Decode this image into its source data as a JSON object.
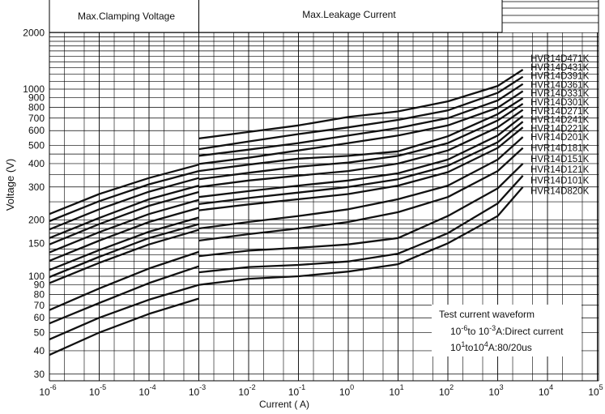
{
  "chart_data": {
    "type": "line",
    "title": "",
    "xlabel": "Current ( A)",
    "ylabel": "Voltage  (V)",
    "x_scale": "log",
    "y_scale": "log",
    "xlim": [
      1e-06,
      100000
    ],
    "ylim": [
      28,
      2400
    ],
    "header_left": "Max.Clamping Voltage",
    "header_right": "Max.Leakage Current",
    "x_ticks": [
      {
        "mant": "10",
        "exp": "-6",
        "value": 1e-06
      },
      {
        "mant": "10",
        "exp": "-5",
        "value": 1e-05
      },
      {
        "mant": "10",
        "exp": "-4",
        "value": 0.0001
      },
      {
        "mant": "10",
        "exp": "-3",
        "value": 0.001
      },
      {
        "mant": "10",
        "exp": "-2",
        "value": 0.01
      },
      {
        "mant": "10",
        "exp": "-1",
        "value": 0.1
      },
      {
        "mant": "10",
        "exp": "0",
        "value": 1
      },
      {
        "mant": "10",
        "exp": "1",
        "value": 10
      },
      {
        "mant": "10",
        "exp": "2",
        "value": 100
      },
      {
        "mant": "10",
        "exp": "3",
        "value": 1000
      },
      {
        "mant": "10",
        "exp": "4",
        "value": 10000
      },
      {
        "mant": "10",
        "exp": "5",
        "value": 100000
      }
    ],
    "y_ticks": [
      {
        "label": "30",
        "value": 30
      },
      {
        "label": "40",
        "value": 40
      },
      {
        "label": "50",
        "value": 50
      },
      {
        "label": "60",
        "value": 60
      },
      {
        "label": "70",
        "value": 70
      },
      {
        "label": "80",
        "value": 80
      },
      {
        "label": "90",
        "value": 90
      },
      {
        "label": "100",
        "value": 100
      },
      {
        "label": "150",
        "value": 150
      },
      {
        "label": "200",
        "value": 200
      },
      {
        "label": "300",
        "value": 300
      },
      {
        "label": "400",
        "value": 400
      },
      {
        "label": "500",
        "value": 500
      },
      {
        "label": "600",
        "value": 600
      },
      {
        "label": "700",
        "value": 700
      },
      {
        "label": "800",
        "value": 800
      },
      {
        "label": "900",
        "value": 900
      },
      {
        "label": "1000",
        "value": 1000
      },
      {
        "label": "2000",
        "value": 2000
      }
    ],
    "legend_box": {
      "line1": "Test current waveform",
      "line2_a": "10",
      "line2_a_exp": "-6",
      "line2_b": "to 10",
      "line2_b_exp": "-3",
      "line2_c": "A:Direct current",
      "line3_a": "10",
      "line3_a_exp": "1",
      "line3_b": "to10",
      "line3_b_exp": "4",
      "line3_c": "A:80/20us"
    },
    "series": [
      {
        "name": "HVR14D471K",
        "leak": [
          [
            0.001,
            545
          ],
          [
            0.01,
            590
          ],
          [
            0.1,
            640
          ],
          [
            1,
            710
          ],
          [
            10,
            760
          ],
          [
            100,
            860
          ],
          [
            1000,
            1040
          ],
          [
            3200,
            1270
          ]
        ],
        "clamp": [
          [
            1e-06,
            215
          ],
          [
            1e-05,
            275
          ],
          [
            0.0001,
            335
          ],
          [
            0.001,
            395
          ]
        ]
      },
      {
        "name": "HVR14D431K",
        "leak": [
          [
            0.001,
            478
          ],
          [
            0.01,
            525
          ],
          [
            0.1,
            575
          ],
          [
            1,
            625
          ],
          [
            10,
            685
          ],
          [
            100,
            770
          ],
          [
            1000,
            955
          ],
          [
            3200,
            1165
          ]
        ],
        "clamp": [
          [
            1e-06,
            197
          ],
          [
            1e-05,
            252
          ],
          [
            0.0001,
            310
          ],
          [
            0.001,
            365
          ]
        ]
      },
      {
        "name": "HVR14D391K",
        "leak": [
          [
            0.001,
            440
          ],
          [
            0.01,
            475
          ],
          [
            0.1,
            515
          ],
          [
            1,
            565
          ],
          [
            10,
            620
          ],
          [
            100,
            700
          ],
          [
            1000,
            870
          ],
          [
            3200,
            1065
          ]
        ],
        "clamp": [
          [
            1e-06,
            178
          ],
          [
            1e-05,
            228
          ],
          [
            0.0001,
            283
          ],
          [
            0.001,
            335
          ]
        ]
      },
      {
        "name": "HVR14D361K",
        "leak": [
          [
            0.001,
            398
          ],
          [
            0.01,
            430
          ],
          [
            0.1,
            470
          ],
          [
            1,
            515
          ],
          [
            10,
            565
          ],
          [
            100,
            640
          ],
          [
            1000,
            795
          ],
          [
            3200,
            975
          ]
        ],
        "clamp": [
          [
            1e-06,
            160
          ],
          [
            1e-05,
            205
          ],
          [
            0.0001,
            258
          ],
          [
            0.001,
            305
          ]
        ]
      },
      {
        "name": "HVR14D331K",
        "leak": [
          [
            0.001,
            365
          ],
          [
            0.01,
            395
          ],
          [
            0.1,
            425
          ],
          [
            1,
            440
          ],
          [
            10,
            465
          ],
          [
            100,
            560
          ],
          [
            1000,
            735
          ],
          [
            3200,
            895
          ]
        ],
        "clamp": [
          [
            1e-06,
            148
          ],
          [
            1e-05,
            190
          ],
          [
            0.0001,
            238
          ],
          [
            0.001,
            282
          ]
        ]
      },
      {
        "name": "HVR14D301K",
        "leak": [
          [
            0.001,
            330
          ],
          [
            0.01,
            357
          ],
          [
            0.1,
            385
          ],
          [
            1,
            405
          ],
          [
            10,
            440
          ],
          [
            100,
            515
          ],
          [
            1000,
            680
          ],
          [
            3200,
            835
          ]
        ],
        "clamp": [
          [
            1e-06,
            134
          ],
          [
            1e-05,
            172
          ],
          [
            0.0001,
            215
          ],
          [
            0.001,
            256
          ]
        ]
      },
      {
        "name": "HVR14D271K",
        "leak": [
          [
            0.001,
            300
          ],
          [
            0.01,
            325
          ],
          [
            0.1,
            345
          ],
          [
            1,
            365
          ],
          [
            10,
            400
          ],
          [
            100,
            470
          ],
          [
            1000,
            625
          ],
          [
            3200,
            775
          ]
        ],
        "clamp": [
          [
            1e-06,
            121
          ],
          [
            1e-05,
            155
          ],
          [
            0.0001,
            195
          ],
          [
            0.001,
            232
          ]
        ]
      },
      {
        "name": "HVR14D241K",
        "leak": [
          [
            0.001,
            265
          ],
          [
            0.01,
            285
          ],
          [
            0.1,
            305
          ],
          [
            1,
            325
          ],
          [
            10,
            355
          ],
          [
            100,
            420
          ],
          [
            1000,
            565
          ],
          [
            3200,
            720
          ]
        ],
        "clamp": [
          [
            1e-06,
            108
          ],
          [
            1e-05,
            138
          ],
          [
            0.0001,
            173
          ],
          [
            0.001,
            206
          ]
        ]
      },
      {
        "name": "HVR14D221K",
        "leak": [
          [
            0.001,
            243
          ],
          [
            0.01,
            262
          ],
          [
            0.1,
            280
          ],
          [
            1,
            300
          ],
          [
            10,
            330
          ],
          [
            100,
            390
          ],
          [
            1000,
            520
          ],
          [
            3200,
            670
          ]
        ],
        "clamp": [
          [
            1e-06,
            99
          ],
          [
            1e-05,
            127
          ],
          [
            0.0001,
            160
          ],
          [
            0.001,
            190
          ]
        ]
      },
      {
        "name": "HVR14D201K",
        "leak": [
          [
            0.001,
            225
          ],
          [
            0.01,
            242
          ],
          [
            0.1,
            258
          ],
          [
            1,
            275
          ],
          [
            10,
            305
          ],
          [
            100,
            360
          ],
          [
            1000,
            485
          ],
          [
            3200,
            625
          ]
        ],
        "clamp": [
          [
            1e-06,
            92
          ],
          [
            1e-05,
            118
          ],
          [
            0.0001,
            148
          ],
          [
            0.001,
            177
          ]
        ]
      },
      {
        "name": "HVR14D181K",
        "leak": [
          [
            0.001,
            180
          ],
          [
            0.01,
            195
          ],
          [
            0.1,
            210
          ],
          [
            1,
            228
          ],
          [
            10,
            258
          ],
          [
            100,
            305
          ],
          [
            1000,
            420
          ],
          [
            3200,
            555
          ]
        ],
        "clamp": [
          [
            1e-06,
            66
          ],
          [
            1e-05,
            86
          ],
          [
            0.0001,
            110
          ],
          [
            0.001,
            135
          ]
        ]
      },
      {
        "name": "HVR14D151K",
        "leak": [
          [
            0.001,
            155
          ],
          [
            0.01,
            168
          ],
          [
            0.1,
            180
          ],
          [
            1,
            195
          ],
          [
            10,
            220
          ],
          [
            100,
            265
          ],
          [
            1000,
            365
          ],
          [
            3200,
            485
          ]
        ],
        "clamp": [
          [
            1e-06,
            56
          ],
          [
            1e-05,
            72
          ],
          [
            0.0001,
            92
          ],
          [
            0.001,
            113
          ]
        ]
      },
      {
        "name": "HVR14D121K",
        "leak": [
          [
            0.001,
            128
          ],
          [
            0.01,
            137
          ],
          [
            0.1,
            142
          ],
          [
            1,
            148
          ],
          [
            10,
            160
          ],
          [
            100,
            210
          ],
          [
            1000,
            295
          ],
          [
            3200,
            400
          ]
        ],
        "clamp": [
          [
            1e-06,
            46
          ],
          [
            1e-05,
            60
          ],
          [
            0.0001,
            75
          ],
          [
            0.001,
            90
          ]
        ]
      },
      {
        "name": "HVR14D101K",
        "leak": [
          [
            0.001,
            105
          ],
          [
            0.01,
            112
          ],
          [
            0.1,
            115
          ],
          [
            1,
            120
          ],
          [
            10,
            132
          ],
          [
            100,
            170
          ],
          [
            1000,
            245
          ],
          [
            3200,
            345
          ]
        ],
        "clamp": [
          [
            1e-06,
            38
          ],
          [
            1e-05,
            50
          ],
          [
            0.0001,
            63
          ],
          [
            0.001,
            76
          ]
        ]
      },
      {
        "name": "HVR14D820K",
        "leak": [
          [
            0.001,
            90
          ],
          [
            0.01,
            97
          ],
          [
            0.1,
            100
          ],
          [
            1,
            106
          ],
          [
            10,
            116
          ],
          [
            100,
            150
          ],
          [
            1000,
            210
          ],
          [
            3200,
            300
          ]
        ],
        "clamp": []
      }
    ]
  }
}
